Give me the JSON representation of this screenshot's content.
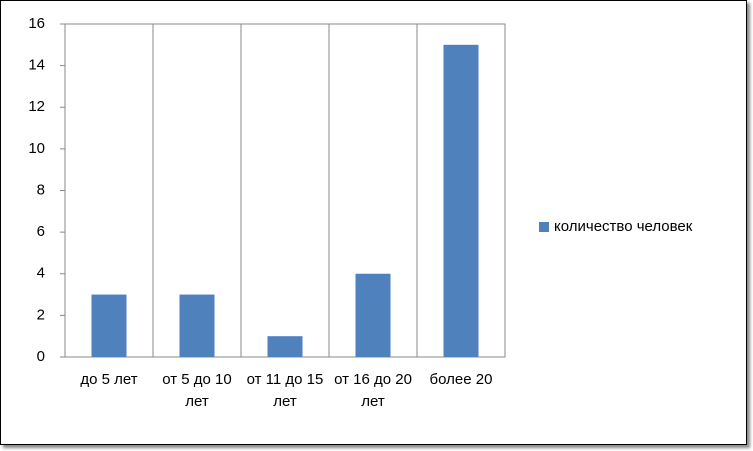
{
  "chart_data": {
    "type": "bar",
    "categories": [
      "до 5 лет",
      "от 5 до 10 лет",
      "от 11 до 15 лет",
      "от 16 до 20 лет",
      "более 20"
    ],
    "series": [
      {
        "name": "количество человек",
        "color": "#4f81bd",
        "values": [
          3,
          3,
          1,
          4,
          15
        ]
      }
    ],
    "ylim": [
      0,
      16
    ],
    "yticks": [
      0,
      2,
      4,
      6,
      8,
      10,
      12,
      14,
      16
    ],
    "legend": "right"
  }
}
